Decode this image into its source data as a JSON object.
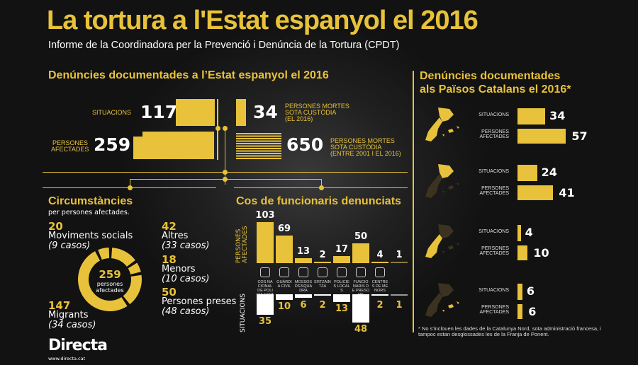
{
  "header": {
    "title": "La tortura a l'Estat espanyol el 2016",
    "subtitle": "Informe de la Coordinadora per la Prevenció i Denúncia de la Tortura (CPDT)"
  },
  "estat": {
    "heading": "Denúncies documentades a l’Estat espanyol el 2016",
    "situacions_label": "SITUACIONS",
    "situacions": "117",
    "persones_label_1": "PERSONES",
    "persones_label_2": "AFECTADES",
    "persones": "259",
    "mortes2016": "34",
    "mortes2016_label": [
      "PERSONES MORTES",
      "SOTA CUSTÒDIA",
      "(EL 2016)"
    ],
    "mortes_total": "650",
    "mortes_total_label": [
      "PERSONES MORTES",
      "SOTA CUSTÒDIA",
      "(ENTRE 2001 I EL 2016)"
    ]
  },
  "catalans": {
    "heading_1": "Denúncies documentades",
    "heading_2": "als Països Catalans el 2016*",
    "sit_label": "SITUACIONS",
    "per_label_1": "PERSONES",
    "per_label_2": "AFECTADES",
    "groups": [
      {
        "situacions": "34",
        "persones": "57",
        "region": "all"
      },
      {
        "situacions": "24",
        "persones": "41",
        "region": "catalunya"
      },
      {
        "situacions": "4",
        "persones": "10",
        "region": "pais-valencia"
      },
      {
        "situacions": "6",
        "persones": "6",
        "region": "illes-balears"
      }
    ],
    "footnote_1": "* No s'inclouen les dades de la Catalunya Nord, sota administració francesa, i",
    "footnote_2": "tampoc estan desglossades les de la Franja de Ponent."
  },
  "circ": {
    "heading": "Circumstàncies",
    "subheading": "per persones afectades.",
    "center_value": "259",
    "center_1": "persones",
    "center_2": "afectades",
    "items": [
      {
        "value": "42",
        "label": "Altres",
        "cases": "(33 casos)"
      },
      {
        "value": "18",
        "label": "Menors",
        "cases": "(10 casos)"
      },
      {
        "value": "50",
        "label": "Persones preses",
        "cases": "(48 casos)"
      },
      {
        "value": "147",
        "label": "Migrants",
        "cases": "(34 casos)"
      },
      {
        "value": "20",
        "label": "Moviments socials",
        "cases": "(9 casos)"
      }
    ]
  },
  "chart_data": {
    "type": "bar",
    "title": "Cos de funcionaris denunciats",
    "categories": [
      "COS NACIONAL DE POLICIA ESPANYOLA",
      "GUÀRDIA CIVIL",
      "MOSSOS D'ESQUADRA",
      "ERTZAINTZA",
      "POLICIES LOCALS",
      "FUNCIONARIS DE PRESONS",
      "CENTRES DE MENORS",
      ""
    ],
    "series": [
      {
        "name": "PERSONES AFECTADES",
        "values": [
          103,
          69,
          13,
          2,
          17,
          50,
          4,
          1
        ]
      },
      {
        "name": "SITUACIONS",
        "values": [
          35,
          10,
          6,
          2,
          13,
          48,
          2,
          1
        ]
      }
    ]
  },
  "colors": {
    "accent": "#e8c23a",
    "background": "#121212"
  },
  "footer": {
    "logo": "Directa",
    "url": "www.directa.cat"
  }
}
